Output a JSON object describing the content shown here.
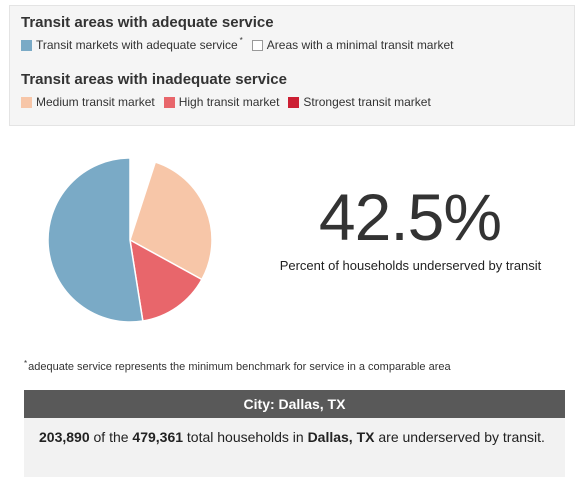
{
  "legend": {
    "adequate_heading": "Transit areas with adequate service",
    "adequate_items": [
      {
        "label": "Transit markets with adequate service",
        "color": "#7aaac6",
        "footnote_mark": "*"
      },
      {
        "label": "Areas with a minimal transit market",
        "color": "#ffffff"
      }
    ],
    "inadequate_heading": "Transit areas with inadequate service",
    "inadequate_items": [
      {
        "label": "Medium transit market",
        "color": "#f7c6a8"
      },
      {
        "label": "High transit market",
        "color": "#e8666b"
      },
      {
        "label": "Strongest transit market",
        "color": "#cc1f33"
      }
    ]
  },
  "chart_data": {
    "type": "pie",
    "title": "",
    "start_angle_deg": 0,
    "slices": [
      {
        "label": "Areas with a minimal transit market",
        "value": 5.0,
        "color": "#ffffff"
      },
      {
        "label": "Medium transit market",
        "value": 28.0,
        "color": "#f7c6a8"
      },
      {
        "label": "High transit market",
        "value": 14.5,
        "color": "#e8666b"
      },
      {
        "label": "Strongest transit market",
        "value": 0.0,
        "color": "#cc1f33"
      },
      {
        "label": "Transit markets with adequate service",
        "value": 52.5,
        "color": "#7aaac6"
      }
    ]
  },
  "headline": {
    "value": "42.5%",
    "label": "Percent of households underserved by transit"
  },
  "footnote": {
    "mark": "*",
    "text": "adequate service represents the minimum benchmark for service in a comparable area"
  },
  "city": {
    "header": "City: Dallas, TX",
    "underserved": "203,890",
    "text_1": " of the ",
    "total": "479,361",
    "text_2": " total households in ",
    "name": "Dallas, TX",
    "text_3": " are underserved by transit."
  }
}
